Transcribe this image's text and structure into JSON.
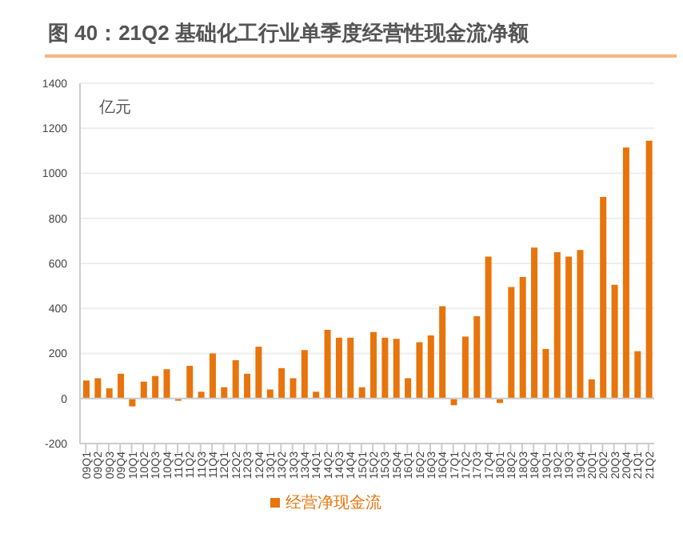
{
  "chart_data": {
    "type": "bar",
    "title": "图 40：21Q2 基础化工行业单季度经营性现金流净额",
    "ylabel": "亿元",
    "categories": [
      "09Q1",
      "09Q2",
      "09Q3",
      "09Q4",
      "10Q1",
      "10Q2",
      "10Q3",
      "10Q4",
      "11Q1",
      "11Q2",
      "11Q3",
      "11Q4",
      "12Q1",
      "12Q2",
      "12Q3",
      "12Q4",
      "13Q1",
      "13Q2",
      "13Q3",
      "13Q4",
      "14Q1",
      "14Q2",
      "14Q3",
      "14Q4",
      "15Q1",
      "15Q2",
      "15Q3",
      "15Q4",
      "16Q1",
      "16Q2",
      "16Q3",
      "16Q4",
      "17Q1",
      "17Q2",
      "17Q3",
      "17Q4",
      "18Q1",
      "18Q2",
      "18Q3",
      "18Q4",
      "19Q1",
      "19Q2",
      "19Q3",
      "19Q4",
      "20Q1",
      "20Q2",
      "20Q3",
      "20Q4",
      "21Q1",
      "21Q2"
    ],
    "series": [
      {
        "name": "经营净现金流",
        "color": "#e8740c",
        "values": [
          80,
          90,
          45,
          110,
          -35,
          75,
          100,
          130,
          -10,
          145,
          30,
          200,
          50,
          170,
          110,
          230,
          40,
          135,
          90,
          215,
          30,
          305,
          270,
          270,
          50,
          295,
          270,
          265,
          90,
          250,
          280,
          410,
          -30,
          275,
          365,
          630,
          -20,
          495,
          540,
          670,
          220,
          650,
          630,
          660,
          85,
          895,
          505,
          1115,
          210,
          1145
        ]
      }
    ],
    "ylim": [
      -200,
      1400
    ],
    "yticks": [
      -200,
      0,
      200,
      400,
      600,
      800,
      1000,
      1200,
      1400
    ],
    "grid": "y",
    "legend": "bottom"
  }
}
